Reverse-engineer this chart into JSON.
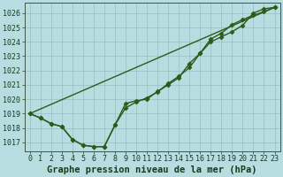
{
  "xlabel": "Graphe pression niveau de la mer (hPa)",
  "bg_color": "#b8dde0",
  "grid_color": "#99c4c8",
  "line_color": "#2d5a1b",
  "xlim": [
    -0.5,
    23.5
  ],
  "ylim": [
    1016.4,
    1026.7
  ],
  "yticks": [
    1017,
    1018,
    1019,
    1020,
    1021,
    1022,
    1023,
    1024,
    1025,
    1026
  ],
  "xticks": [
    0,
    1,
    2,
    3,
    4,
    5,
    6,
    7,
    8,
    9,
    10,
    11,
    12,
    13,
    14,
    15,
    16,
    17,
    18,
    19,
    20,
    21,
    22,
    23
  ],
  "line1_x": [
    0,
    1,
    2,
    3,
    4,
    5,
    6,
    7,
    8,
    9,
    10,
    11,
    12,
    13,
    14,
    15,
    16,
    17,
    18,
    19,
    20,
    21,
    22,
    23
  ],
  "line1_y": [
    1019.0,
    1018.7,
    1018.3,
    1018.1,
    1017.2,
    1016.8,
    1016.7,
    1016.7,
    1018.2,
    1019.7,
    1019.9,
    1020.0,
    1020.55,
    1021.0,
    1021.5,
    1022.5,
    1023.2,
    1024.0,
    1024.35,
    1024.7,
    1025.15,
    1026.0,
    1026.3,
    1026.4
  ],
  "line2_x": [
    0,
    1,
    2,
    3,
    4,
    5,
    6,
    7,
    8,
    9,
    10,
    11,
    12,
    13,
    14,
    15,
    16,
    17,
    18,
    19,
    20,
    21,
    22,
    23
  ],
  "line2_y": [
    1019.0,
    1018.7,
    1018.3,
    1018.1,
    1017.2,
    1016.8,
    1016.7,
    1016.7,
    1018.2,
    1019.4,
    1019.8,
    1020.1,
    1020.5,
    1021.1,
    1021.6,
    1022.2,
    1023.2,
    1024.2,
    1024.6,
    1025.2,
    1025.55,
    1025.85,
    1026.1,
    1026.4
  ],
  "line3_x": [
    0,
    23
  ],
  "line3_y": [
    1019.0,
    1026.4
  ],
  "marker": "D",
  "markersize": 2.5,
  "linewidth": 1.0,
  "xlabel_fontsize": 7.5,
  "tick_fontsize": 6.0
}
